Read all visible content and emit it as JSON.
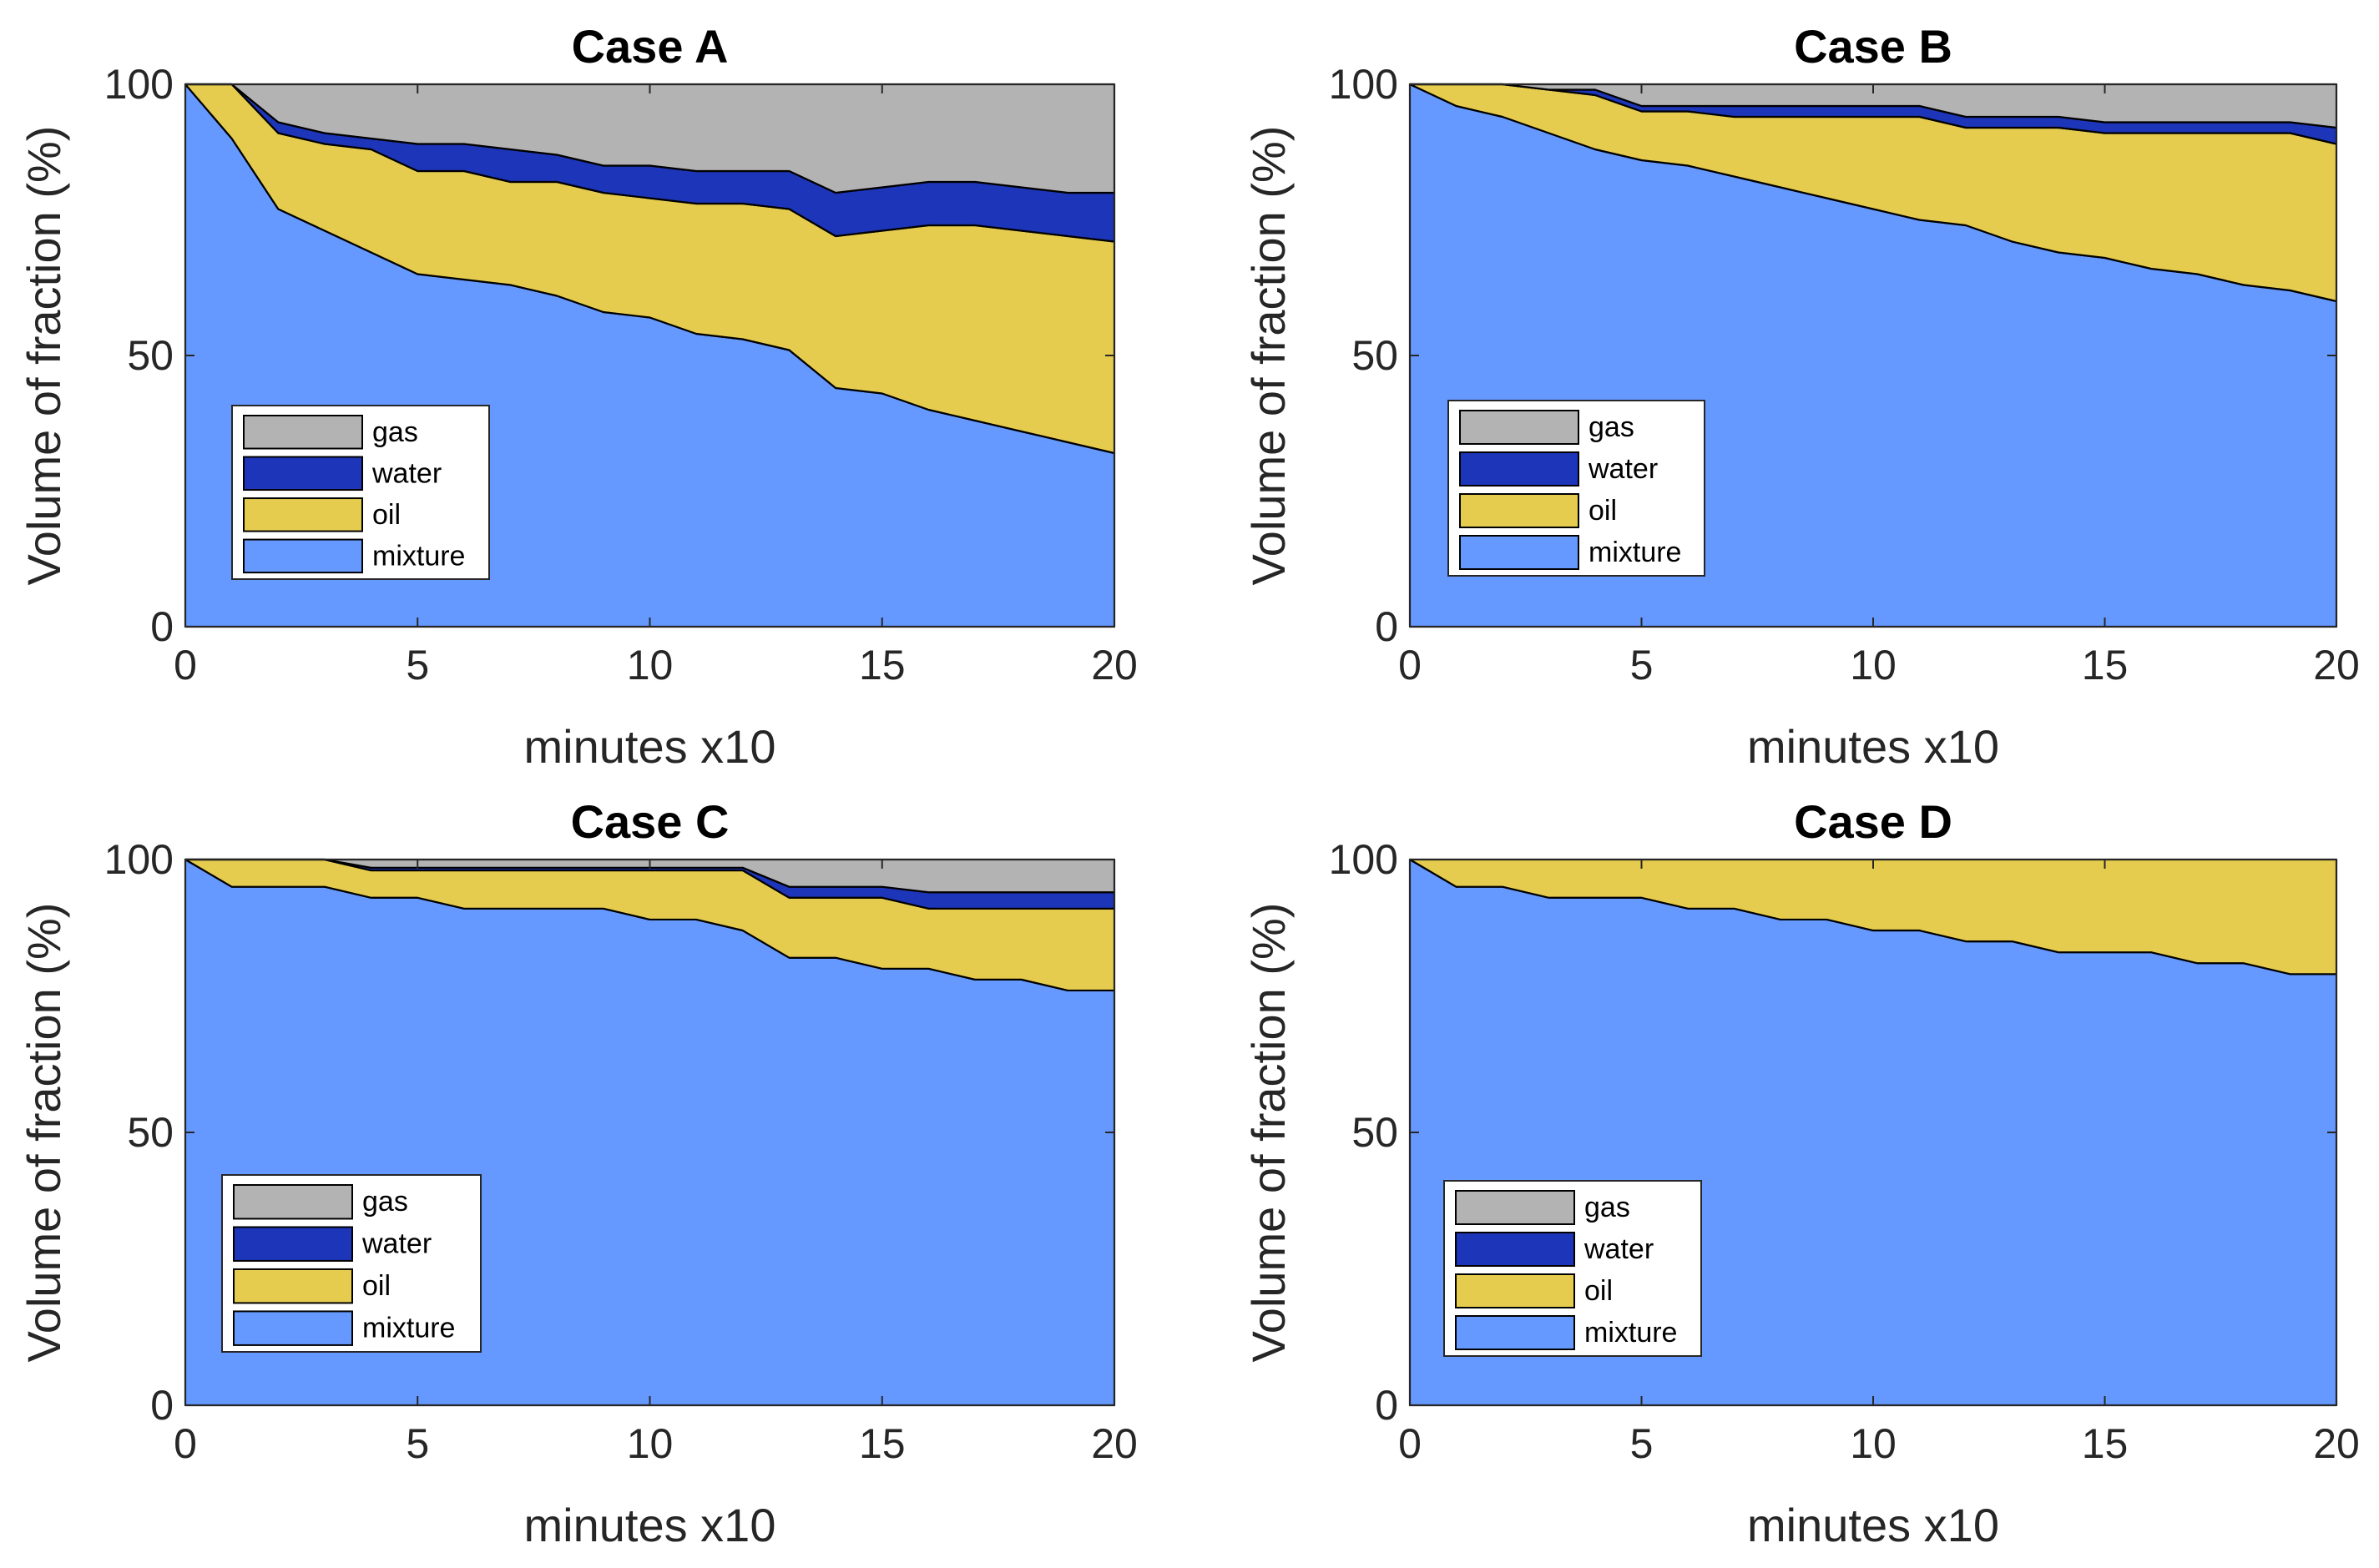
{
  "colors": {
    "gas": "#b3b3b3",
    "water": "#1d35b8",
    "oil": "#e5cc4f",
    "mixture": "#6699ff",
    "stroke": "#000000"
  },
  "chart_data": [
    {
      "type": "area",
      "stacked": true,
      "title": "Case A",
      "xlabel": "minutes x10",
      "ylabel": "Volume of fraction (%)",
      "xlim": [
        0,
        20
      ],
      "ylim": [
        0,
        100
      ],
      "xticks": [
        0,
        5,
        10,
        15,
        20
      ],
      "yticks": [
        0,
        50,
        100
      ],
      "x": [
        0,
        1,
        2,
        3,
        4,
        5,
        6,
        7,
        8,
        9,
        10,
        11,
        12,
        13,
        14,
        15,
        16,
        17,
        18,
        19,
        20
      ],
      "series": [
        {
          "name": "mixture",
          "color_key": "mixture",
          "values": [
            100,
            90,
            77,
            73,
            69,
            65,
            64,
            63,
            61,
            58,
            57,
            54,
            53,
            51,
            44,
            43,
            40,
            38,
            36,
            34,
            32
          ]
        },
        {
          "name": "oil",
          "color_key": "oil",
          "values": [
            0,
            10,
            14,
            16,
            19,
            19,
            20,
            19,
            21,
            22,
            22,
            24,
            25,
            26,
            28,
            30,
            34,
            36,
            37,
            38,
            39
          ]
        },
        {
          "name": "water",
          "color_key": "water",
          "values": [
            0,
            0,
            2,
            2,
            2,
            5,
            5,
            6,
            5,
            5,
            6,
            6,
            6,
            7,
            8,
            8,
            8,
            8,
            8,
            8,
            9
          ]
        },
        {
          "name": "gas",
          "color_key": "gas",
          "values": [
            0,
            0,
            7,
            9,
            10,
            11,
            11,
            12,
            13,
            15,
            15,
            16,
            16,
            16,
            20,
            19,
            18,
            18,
            19,
            20,
            20
          ]
        }
      ],
      "legend": {
        "entries": [
          "gas",
          "water",
          "oil",
          "mixture"
        ],
        "placement": "lower-left"
      }
    },
    {
      "type": "area",
      "stacked": true,
      "title": "Case B",
      "xlabel": "minutes x10",
      "ylabel": "Volume of fraction (%)",
      "xlim": [
        0,
        20
      ],
      "ylim": [
        0,
        100
      ],
      "xticks": [
        0,
        5,
        10,
        15,
        20
      ],
      "yticks": [
        0,
        50,
        100
      ],
      "x": [
        0,
        1,
        2,
        3,
        4,
        5,
        6,
        7,
        8,
        9,
        10,
        11,
        12,
        13,
        14,
        15,
        16,
        17,
        18,
        19,
        20
      ],
      "series": [
        {
          "name": "mixture",
          "color_key": "mixture",
          "values": [
            100,
            96,
            94,
            91,
            88,
            86,
            85,
            83,
            81,
            79,
            77,
            75,
            74,
            71,
            69,
            68,
            66,
            65,
            63,
            62,
            60
          ]
        },
        {
          "name": "oil",
          "color_key": "oil",
          "values": [
            0,
            4,
            6,
            8,
            10,
            9,
            10,
            11,
            13,
            15,
            17,
            19,
            18,
            21,
            23,
            23,
            25,
            26,
            28,
            29,
            29
          ]
        },
        {
          "name": "water",
          "color_key": "water",
          "values": [
            0,
            0,
            0,
            0,
            1,
            1,
            1,
            2,
            2,
            2,
            2,
            2,
            2,
            2,
            2,
            2,
            2,
            2,
            2,
            2,
            3
          ]
        },
        {
          "name": "gas",
          "color_key": "gas",
          "values": [
            0,
            0,
            0,
            1,
            1,
            4,
            4,
            4,
            4,
            4,
            4,
            4,
            6,
            6,
            6,
            7,
            7,
            7,
            7,
            7,
            8
          ]
        }
      ],
      "legend": {
        "entries": [
          "gas",
          "water",
          "oil",
          "mixture"
        ],
        "placement": "lower-left"
      }
    },
    {
      "type": "area",
      "stacked": true,
      "title": "Case C",
      "xlabel": "minutes x10",
      "ylabel": "Volume of fraction (%)",
      "xlim": [
        0,
        20
      ],
      "ylim": [
        0,
        100
      ],
      "xticks": [
        0,
        5,
        10,
        15,
        20
      ],
      "yticks": [
        0,
        50,
        100
      ],
      "x": [
        0,
        1,
        2,
        3,
        4,
        5,
        6,
        7,
        8,
        9,
        10,
        11,
        12,
        13,
        14,
        15,
        16,
        17,
        18,
        19,
        20
      ],
      "series": [
        {
          "name": "mixture",
          "color_key": "mixture",
          "values": [
            100,
            95,
            95,
            95,
            93,
            93,
            91,
            91,
            91,
            91,
            89,
            89,
            87,
            82,
            82,
            80,
            80,
            78,
            78,
            76,
            76
          ]
        },
        {
          "name": "oil",
          "color_key": "oil",
          "values": [
            0,
            5,
            5,
            5,
            5,
            5,
            7,
            7,
            7,
            7,
            9,
            9,
            11,
            11,
            11,
            13,
            11,
            13,
            13,
            15,
            15
          ]
        },
        {
          "name": "water",
          "color_key": "water",
          "values": [
            0,
            0,
            0,
            0,
            0.5,
            0.5,
            0.5,
            0.5,
            0.5,
            0.5,
            0.5,
            0.5,
            0.5,
            2,
            2,
            2,
            3,
            3,
            3,
            3,
            3
          ]
        },
        {
          "name": "gas",
          "color_key": "gas",
          "values": [
            0,
            0,
            0,
            0,
            1.5,
            1.5,
            1.5,
            1.5,
            1.5,
            1.5,
            1.5,
            1.5,
            1.5,
            5,
            5,
            5,
            6,
            6,
            6,
            6,
            6
          ]
        }
      ],
      "legend": {
        "entries": [
          "gas",
          "water",
          "oil",
          "mixture"
        ],
        "placement": "lower-left"
      }
    },
    {
      "type": "area",
      "stacked": true,
      "title": "Case D",
      "xlabel": "minutes x10",
      "ylabel": "Volume of fraction (%)",
      "xlim": [
        0,
        20
      ],
      "ylim": [
        0,
        100
      ],
      "xticks": [
        0,
        5,
        10,
        15,
        20
      ],
      "yticks": [
        0,
        50,
        100
      ],
      "x": [
        0,
        1,
        2,
        3,
        4,
        5,
        6,
        7,
        8,
        9,
        10,
        11,
        12,
        13,
        14,
        15,
        16,
        17,
        18,
        19,
        20
      ],
      "series": [
        {
          "name": "mixture",
          "color_key": "mixture",
          "values": [
            100,
            95,
            95,
            93,
            93,
            93,
            91,
            91,
            89,
            89,
            87,
            87,
            85,
            85,
            83,
            83,
            83,
            81,
            81,
            79,
            79
          ]
        },
        {
          "name": "oil",
          "color_key": "oil",
          "values": [
            0,
            5,
            5,
            7,
            7,
            7,
            9,
            9,
            11,
            11,
            13,
            13,
            15,
            15,
            17,
            17,
            17,
            19,
            19,
            21,
            21
          ]
        },
        {
          "name": "water",
          "color_key": "water",
          "values": [
            0,
            0,
            0,
            0,
            0,
            0,
            0,
            0,
            0,
            0,
            0,
            0,
            0,
            0,
            0,
            0,
            0,
            0,
            0,
            0,
            0
          ]
        },
        {
          "name": "gas",
          "color_key": "gas",
          "values": [
            0,
            0,
            0,
            0,
            0,
            0,
            0,
            0,
            0,
            0,
            0,
            0,
            0,
            0,
            0,
            0,
            0,
            0,
            0,
            0,
            0
          ]
        }
      ],
      "legend": {
        "entries": [
          "gas",
          "water",
          "oil",
          "mixture"
        ],
        "placement": "lower-left"
      }
    }
  ]
}
